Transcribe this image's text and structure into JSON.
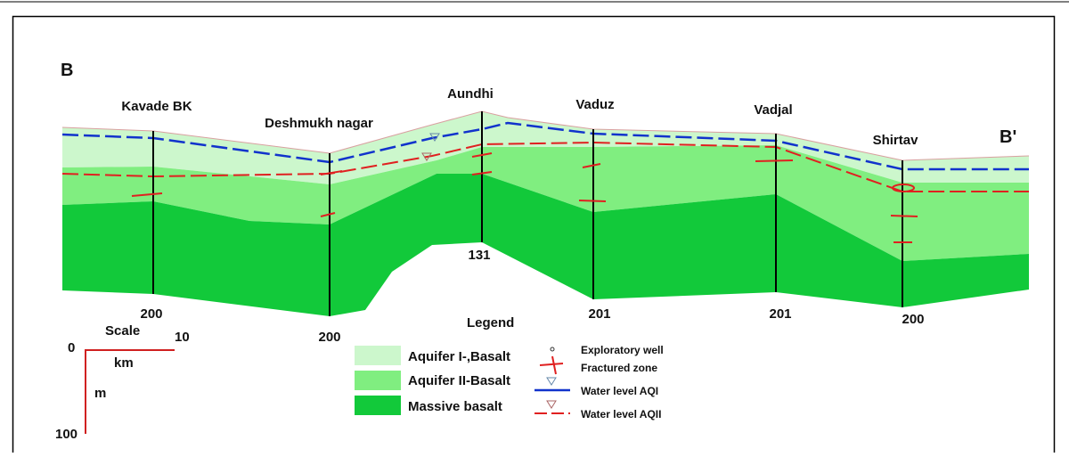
{
  "section": {
    "start_label": "B",
    "end_label": "B'"
  },
  "wells": [
    {
      "name": "Kavade BK",
      "depth": 200
    },
    {
      "name": "Deshmukh nagar",
      "depth": 200
    },
    {
      "name": "Aundhi",
      "depth": 131
    },
    {
      "name": "Vaduz",
      "depth": 201
    },
    {
      "name": "Vadjal",
      "depth": 201
    },
    {
      "name": "Shirtav",
      "depth": 200
    }
  ],
  "legend": {
    "title": "Legend",
    "units": [
      "Aquifer I-,Basalt",
      "Aquifer II-Basalt",
      "Massive basalt"
    ],
    "symbols": [
      "Exploratory well",
      "Fractured zone",
      "Water level AQI",
      "Water level AQII"
    ]
  },
  "scale": {
    "title": "Scale",
    "x_start": 0,
    "x_end": 10,
    "x_unit": "km",
    "y_unit": "m",
    "y_end": 100
  }
}
